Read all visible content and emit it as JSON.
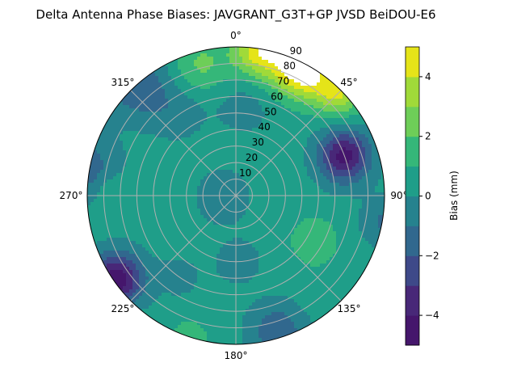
{
  "chart_data": {
    "type": "contour",
    "projection": "polar",
    "title": "Delta Antenna Phase Biases: JAVGRANT_G3T+GP JVSD BeiDOU-E6",
    "angular_ticks": [
      "0°",
      "45°",
      "90°",
      "135°",
      "180°",
      "225°",
      "270°",
      "315°"
    ],
    "radial_ticks": [
      "10",
      "20",
      "30",
      "40",
      "50",
      "60",
      "70",
      "80",
      "90"
    ],
    "radial_range": [
      0,
      90
    ],
    "angular_direction": "clockwise",
    "zero_location": "top",
    "grid": true,
    "colorbar": {
      "label": "Bias (mm)",
      "range": [
        -5,
        5
      ],
      "levels": [
        -5,
        -4,
        -3,
        -2,
        -1,
        0,
        1,
        2,
        3,
        4,
        5
      ],
      "tick_values": [
        -4,
        -2,
        0,
        2,
        4
      ],
      "tick_labels": [
        "−4",
        "−2",
        "0",
        "2",
        "4"
      ],
      "colormap": "viridis",
      "colors": [
        "#45166c",
        "#482878",
        "#3e4989",
        "#31688e",
        "#26828e",
        "#1f9e89",
        "#35b779",
        "#6ece58",
        "#a0da39",
        "#e5e419"
      ],
      "over_color": "#ffffff"
    },
    "base_value": 0.4,
    "features": [
      {
        "az": 10,
        "r": 90,
        "width": 12,
        "value": 4.5
      },
      {
        "az": 28,
        "r": 86,
        "width": 12,
        "value": 5.5
      },
      {
        "az": 45,
        "r": 88,
        "width": 10,
        "value": 3.5
      },
      {
        "az": 345,
        "r": 82,
        "width": 12,
        "value": 1.8
      },
      {
        "az": 70,
        "r": 70,
        "width": 11,
        "value": -4.8
      },
      {
        "az": 235,
        "r": 88,
        "width": 11,
        "value": -5.2
      },
      {
        "az": 280,
        "r": 92,
        "width": 14,
        "value": -2.0
      },
      {
        "az": 318,
        "r": 90,
        "width": 14,
        "value": -2.2
      },
      {
        "az": 120,
        "r": 55,
        "width": 10,
        "value": 1.6
      },
      {
        "az": 163,
        "r": 86,
        "width": 12,
        "value": -2.2
      },
      {
        "az": 198,
        "r": 92,
        "width": 8,
        "value": 1.6
      },
      {
        "az": 265,
        "r": 8,
        "width": 11,
        "value": -1.2
      },
      {
        "az": 272,
        "r": 76,
        "width": 8,
        "value": 1.0
      },
      {
        "az": 5,
        "r": 55,
        "width": 12,
        "value": -0.9
      },
      {
        "az": 325,
        "r": 62,
        "width": 12,
        "value": -1.0
      },
      {
        "az": 178,
        "r": 40,
        "width": 10,
        "value": -0.9
      },
      {
        "az": 100,
        "r": 92,
        "width": 10,
        "value": -1.6
      },
      {
        "az": 215,
        "r": 60,
        "width": 10,
        "value": -0.7
      },
      {
        "az": 140,
        "r": 75,
        "width": 8,
        "value": 0.4
      }
    ]
  }
}
